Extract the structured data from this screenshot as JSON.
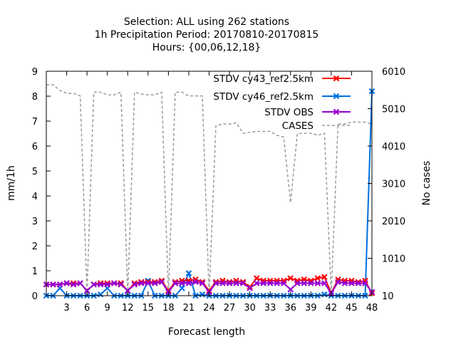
{
  "chart_data": {
    "type": "line",
    "title_lines": [
      "Selection: ALL using   262 stations",
      "1h Precipitation   Period: 20170810-20170815",
      "Hours: {00,06,12,18}"
    ],
    "xlabel": "Forecast length",
    "ylabel": "mm/1h",
    "y2label": "No cases",
    "xlim": [
      0,
      48
    ],
    "ylim": [
      0,
      9
    ],
    "y2lim": [
      10,
      6010
    ],
    "x_ticks": [
      3,
      6,
      9,
      12,
      15,
      18,
      21,
      24,
      27,
      30,
      33,
      36,
      39,
      42,
      45,
      48
    ],
    "y_ticks": [
      0,
      1,
      2,
      3,
      4,
      5,
      6,
      7,
      8,
      9
    ],
    "y2_ticks": [
      10,
      1010,
      2010,
      3010,
      4010,
      5010,
      6010
    ],
    "legend_position": "top-right",
    "x": [
      0,
      1,
      2,
      3,
      4,
      5,
      6,
      7,
      8,
      9,
      10,
      11,
      12,
      13,
      14,
      15,
      16,
      17,
      18,
      19,
      20,
      21,
      22,
      23,
      24,
      25,
      26,
      27,
      28,
      29,
      30,
      31,
      32,
      33,
      34,
      35,
      36,
      37,
      38,
      39,
      40,
      41,
      42,
      43,
      44,
      45,
      46,
      47,
      48
    ],
    "series": [
      {
        "name": "STDV cy43_ref2.5km",
        "color": "#ff0000",
        "marker": "x",
        "values": [
          0.45,
          0.45,
          0.45,
          0.5,
          0.5,
          0.5,
          0.2,
          0.45,
          0.5,
          0.5,
          0.5,
          0.5,
          0.2,
          0.5,
          0.55,
          0.55,
          0.55,
          0.6,
          0.2,
          0.55,
          0.6,
          0.6,
          0.65,
          0.55,
          0.2,
          0.55,
          0.6,
          0.55,
          0.6,
          0.55,
          0.35,
          0.7,
          0.6,
          0.6,
          0.6,
          0.6,
          0.7,
          0.6,
          0.65,
          0.6,
          0.7,
          0.75,
          0.1,
          0.65,
          0.6,
          0.6,
          0.55,
          0.6,
          0.1
        ]
      },
      {
        "name": "STDV cy46_ref2.5km",
        "color": "#0070e0",
        "marker": "x",
        "values": [
          0.0,
          0.0,
          0.3,
          0.0,
          0.0,
          0.0,
          0.0,
          0.0,
          0.05,
          0.3,
          0.0,
          0.0,
          0.0,
          0.0,
          0.0,
          0.6,
          0.0,
          0.0,
          0.0,
          0.0,
          0.3,
          0.9,
          0.0,
          0.05,
          0.0,
          0.0,
          0.0,
          0.0,
          0.0,
          0.0,
          0.0,
          0.0,
          0.0,
          0.0,
          0.0,
          0.0,
          0.0,
          0.0,
          0.0,
          0.0,
          0.0,
          0.05,
          0.0,
          0.0,
          0.0,
          0.0,
          0.0,
          0.0,
          8.2
        ]
      },
      {
        "name": "STDV OBS",
        "color": "#9400d3",
        "marker": "x",
        "values": [
          0.45,
          0.45,
          0.45,
          0.5,
          0.45,
          0.5,
          0.2,
          0.45,
          0.45,
          0.45,
          0.5,
          0.45,
          0.2,
          0.45,
          0.5,
          0.5,
          0.5,
          0.55,
          0.15,
          0.5,
          0.5,
          0.5,
          0.55,
          0.5,
          0.15,
          0.5,
          0.5,
          0.5,
          0.5,
          0.5,
          0.3,
          0.5,
          0.5,
          0.5,
          0.5,
          0.5,
          0.25,
          0.5,
          0.5,
          0.5,
          0.5,
          0.5,
          0.1,
          0.55,
          0.5,
          0.5,
          0.5,
          0.5,
          0.15
        ]
      },
      {
        "name": "CASES",
        "color": "#999999",
        "axis": "y2",
        "dashed": true,
        "values": [
          5650,
          5650,
          5500,
          5420,
          5420,
          5350,
          100,
          5450,
          5450,
          5380,
          5380,
          5450,
          50,
          5450,
          5400,
          5380,
          5380,
          5450,
          20,
          5450,
          5450,
          5350,
          5350,
          5350,
          20,
          4550,
          4600,
          4600,
          4630,
          4350,
          4380,
          4400,
          4400,
          4400,
          4300,
          4250,
          2500,
          4350,
          4350,
          4350,
          4300,
          4350,
          30,
          4600,
          4600,
          4650,
          4650,
          4650,
          4600
        ]
      }
    ]
  }
}
